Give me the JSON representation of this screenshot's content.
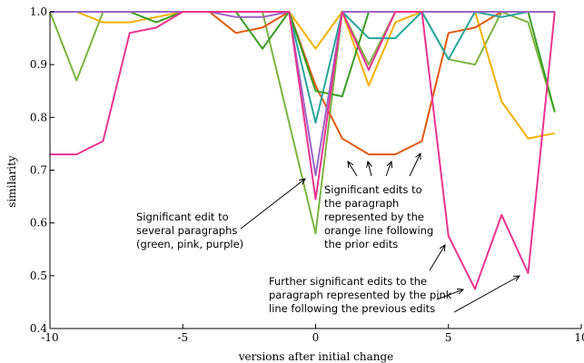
{
  "chart_data": {
    "type": "line",
    "title": "",
    "xlabel": "versions after initial change",
    "ylabel": "similarity",
    "xlim": [
      -10,
      10
    ],
    "ylim": [
      0.4,
      1.0
    ],
    "xticks": [
      -10,
      -5,
      0,
      5,
      10
    ],
    "yticks": [
      0.4,
      0.5,
      0.6,
      0.7,
      0.8,
      0.9,
      1.0
    ],
    "grid": false,
    "legend": "none",
    "series": [
      {
        "color": "#7cb342",
        "x": [
          -10,
          -9,
          -8,
          -7,
          -6,
          -5,
          -4,
          -3,
          -2,
          -1,
          0,
          1,
          2,
          3,
          4,
          5,
          6,
          7,
          8,
          9
        ],
        "y": [
          1.0,
          0.87,
          1.0,
          1.0,
          1.0,
          1.0,
          1.0,
          1.0,
          1.0,
          0.79,
          0.58,
          1.0,
          0.9,
          1.0,
          1.0,
          0.91,
          0.9,
          1.0,
          0.98,
          0.81
        ]
      },
      {
        "color": "#f4b000",
        "x": [
          -10,
          -9,
          -8,
          -7,
          -6,
          -5,
          -4,
          -3,
          -2,
          -1,
          0,
          1,
          2,
          3,
          4,
          5,
          6,
          7,
          8,
          9
        ],
        "y": [
          1.0,
          1.0,
          0.98,
          0.98,
          0.99,
          1.0,
          1.0,
          1.0,
          1.0,
          1.0,
          0.93,
          1.0,
          0.86,
          0.98,
          1.0,
          1.0,
          1.0,
          0.83,
          0.76,
          0.77
        ]
      },
      {
        "color": "#e05a10",
        "x": [
          -10,
          -9,
          -8,
          -7,
          -6,
          -5,
          -4,
          -3,
          -2,
          -1,
          0,
          1,
          2,
          3,
          4,
          5,
          6,
          7,
          8,
          9
        ],
        "y": [
          1.0,
          1.0,
          1.0,
          1.0,
          1.0,
          1.0,
          1.0,
          0.96,
          0.97,
          1.0,
          0.86,
          0.76,
          0.73,
          0.73,
          0.755,
          0.96,
          0.97,
          1.0,
          1.0,
          1.0
        ]
      },
      {
        "color": "#26a69a",
        "x": [
          -10,
          -9,
          -8,
          -7,
          -6,
          -5,
          -4,
          -3,
          -2,
          -1,
          0,
          1,
          2,
          3,
          4,
          5,
          6,
          7,
          8,
          9
        ],
        "y": [
          1.0,
          1.0,
          1.0,
          1.0,
          1.0,
          1.0,
          1.0,
          1.0,
          1.0,
          1.0,
          0.79,
          1.0,
          0.95,
          0.95,
          1.0,
          0.91,
          1.0,
          0.99,
          1.0,
          1.0
        ]
      },
      {
        "color": "#3a9d23",
        "x": [
          -10,
          -9,
          -8,
          -7,
          -6,
          -5,
          -4,
          -3,
          -2,
          -1,
          0,
          1,
          2,
          3,
          4,
          5,
          6,
          7,
          8,
          9
        ],
        "y": [
          1.0,
          1.0,
          1.0,
          1.0,
          0.98,
          1.0,
          1.0,
          1.0,
          0.93,
          1.0,
          0.85,
          0.84,
          1.0,
          1.0,
          1.0,
          1.0,
          1.0,
          1.0,
          1.0,
          0.81
        ]
      },
      {
        "color": "#9c64c8",
        "x": [
          -10,
          -9,
          -8,
          -7,
          -6,
          -5,
          -4,
          -3,
          -2,
          -1,
          0,
          1,
          2,
          3,
          4,
          5,
          6,
          7,
          8,
          9
        ],
        "y": [
          1.0,
          1.0,
          1.0,
          1.0,
          1.0,
          1.0,
          1.0,
          0.99,
          0.99,
          1.0,
          0.69,
          1.0,
          1.0,
          1.0,
          1.0,
          1.0,
          1.0,
          1.0,
          1.0,
          1.0
        ]
      },
      {
        "color": "#e8348f",
        "x": [
          -10,
          -9,
          -8,
          -7,
          -6,
          -5,
          -4,
          -3,
          -2,
          -1,
          0,
          1,
          2,
          3,
          4,
          5,
          6,
          7,
          8,
          9
        ],
        "y": [
          0.73,
          0.73,
          0.755,
          0.96,
          0.97,
          1.0,
          1.0,
          1.0,
          1.0,
          1.0,
          0.645,
          1.0,
          0.89,
          1.0,
          1.0,
          0.575,
          0.475,
          0.615,
          0.505,
          1.0
        ]
      }
    ],
    "annotations": [
      {
        "lines": [
          "Significant edit to",
          "several paragraphs",
          "(green, pink, purple)"
        ]
      },
      {
        "lines": [
          "Significant edits to",
          "the paragraph",
          "represented by the",
          "orange line following",
          "the prior edits"
        ]
      },
      {
        "lines": [
          "Further significant edits to the",
          "paragraph represented by the pink",
          "line following the previous edits"
        ]
      }
    ]
  }
}
